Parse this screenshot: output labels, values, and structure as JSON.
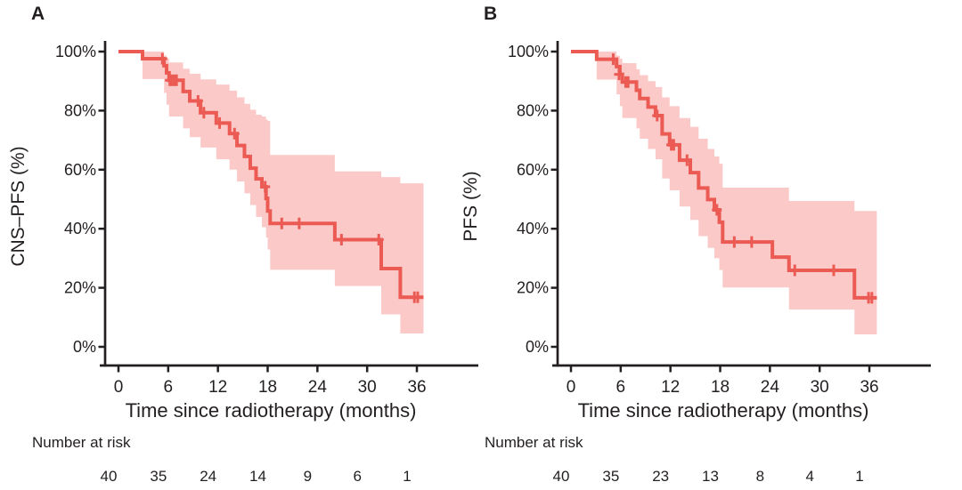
{
  "figure": {
    "background": "#ffffff",
    "text_color": "#231f20",
    "curve_color": "#eb5a53",
    "band_color": "#fbcac8"
  },
  "chart_data": [
    {
      "type": "line",
      "subtype": "kaplan-meier-step",
      "panel_label": "A",
      "ylabel": "CNS–PFS (%)",
      "xlabel": "Time since radiotherapy (months)",
      "xlim": [
        0,
        36.8
      ],
      "ylim": [
        0,
        100
      ],
      "x_ticks": [
        0,
        6,
        12,
        18,
        24,
        30,
        36
      ],
      "y_ticks": [
        {
          "value": 100,
          "label": "100%"
        },
        {
          "value": 80,
          "label": "80%"
        },
        {
          "value": 60,
          "label": "60%"
        },
        {
          "value": 40,
          "label": "40%"
        },
        {
          "value": 20,
          "label": "20%"
        },
        {
          "value": 0,
          "label": "0%"
        }
      ],
      "grid": false,
      "legend": null,
      "steps": {
        "t": [
          0,
          2.9,
          5.5,
          5.8,
          6.1,
          7.8,
          8.6,
          9.9,
          11.8,
          13.4,
          14.3,
          15.2,
          15.9,
          16.6,
          17.3,
          17.8,
          18.0,
          18.3,
          26.1,
          31.7,
          34.0
        ],
        "surv": [
          100,
          97.6,
          95.2,
          92.8,
          90.3,
          86.5,
          83.3,
          79.3,
          75.8,
          72.2,
          68.2,
          64.5,
          60.5,
          56.9,
          54.2,
          50.3,
          46.0,
          41.8,
          36.3,
          26.5,
          16.8
        ],
        "t_end": 36.8
      },
      "band": {
        "lo": [
          100,
          90.7,
          86,
          82,
          78,
          74,
          71,
          67.5,
          63.5,
          60,
          56,
          52,
          48,
          44,
          40.5,
          37,
          33,
          26.1,
          20.6,
          11,
          4.5
        ],
        "hi": [
          100,
          100,
          98.7,
          97.7,
          96.3,
          94.2,
          92.5,
          90.6,
          88.8,
          86.8,
          84.5,
          82.3,
          80.3,
          78.6,
          78,
          77,
          76.5,
          65,
          59.4,
          57.5,
          55.4
        ]
      },
      "censors": {
        "t": [
          5.3,
          6.2,
          6.5,
          6.75,
          7.0,
          9.6,
          10.3,
          12.2,
          14.0,
          17.7,
          19.7,
          21.8,
          26.9,
          31.4,
          35.7,
          36.1
        ],
        "s": [
          97.6,
          90.3,
          90.3,
          90.3,
          90.3,
          83.3,
          79.3,
          75.8,
          72.2,
          54.2,
          41.8,
          41.8,
          36.3,
          36.3,
          16.8,
          16.8
        ]
      },
      "number_at_risk": {
        "label": "Number at risk",
        "times": [
          0,
          6,
          12,
          18,
          24,
          30,
          36
        ],
        "counts": [
          40,
          35,
          24,
          14,
          9,
          6,
          1
        ]
      }
    },
    {
      "type": "line",
      "subtype": "kaplan-meier-step",
      "panel_label": "B",
      "ylabel": "PFS (%)",
      "xlabel": "Time since radiotherapy (months)",
      "xlim": [
        0,
        36.9
      ],
      "ylim": [
        0,
        100
      ],
      "x_ticks": [
        0,
        6,
        12,
        18,
        24,
        30,
        36
      ],
      "y_ticks": [
        {
          "value": 100,
          "label": "100%"
        },
        {
          "value": 80,
          "label": "80%"
        },
        {
          "value": 60,
          "label": "60%"
        },
        {
          "value": 40,
          "label": "40%"
        },
        {
          "value": 20,
          "label": "20%"
        },
        {
          "value": 0,
          "label": "0%"
        }
      ],
      "grid": false,
      "legend": null,
      "steps": {
        "t": [
          0,
          3.1,
          5.5,
          5.9,
          6.2,
          7.9,
          8.3,
          9.3,
          10.2,
          11.0,
          11.9,
          13.1,
          14.4,
          15.4,
          16.5,
          17.3,
          17.9,
          18.3,
          24.3,
          26.3,
          34.2
        ],
        "surv": [
          100,
          97.4,
          94.9,
          92.3,
          89.7,
          86.9,
          84.1,
          81.2,
          78.3,
          72.1,
          68.4,
          63.2,
          59.0,
          53.8,
          49.9,
          46.4,
          42.2,
          35.5,
          30.4,
          25.9,
          16.6
        ],
        "t_end": 36.9
      },
      "band": {
        "lo": [
          100,
          90.5,
          85.5,
          81.5,
          77.5,
          74,
          70.5,
          67,
          63.5,
          57,
          53,
          47.5,
          43,
          37.5,
          33.5,
          30,
          26,
          20.1,
          20.1,
          12.6,
          4.2
        ],
        "hi": [
          100,
          100,
          98.6,
          97.6,
          96.1,
          94,
          92,
          90,
          88,
          84.5,
          81.5,
          77.5,
          74.5,
          70.5,
          67,
          64.5,
          62,
          53.9,
          53.9,
          49.4,
          46
        ]
      },
      "censors": {
        "t": [
          5.1,
          5.8,
          6.6,
          6.9,
          10.4,
          12.1,
          12.4,
          14.0,
          17.6,
          19.7,
          21.8,
          27.0,
          31.7,
          35.9,
          36.3
        ],
        "s": [
          97.4,
          92.3,
          89.7,
          89.7,
          78.3,
          68.4,
          68.4,
          63.2,
          46.4,
          35.5,
          35.5,
          25.9,
          25.9,
          16.6,
          16.6
        ]
      },
      "number_at_risk": {
        "label": "Number at risk",
        "times": [
          0,
          6,
          12,
          18,
          24,
          30,
          36
        ],
        "counts": [
          40,
          35,
          23,
          13,
          8,
          4,
          1
        ]
      }
    }
  ]
}
